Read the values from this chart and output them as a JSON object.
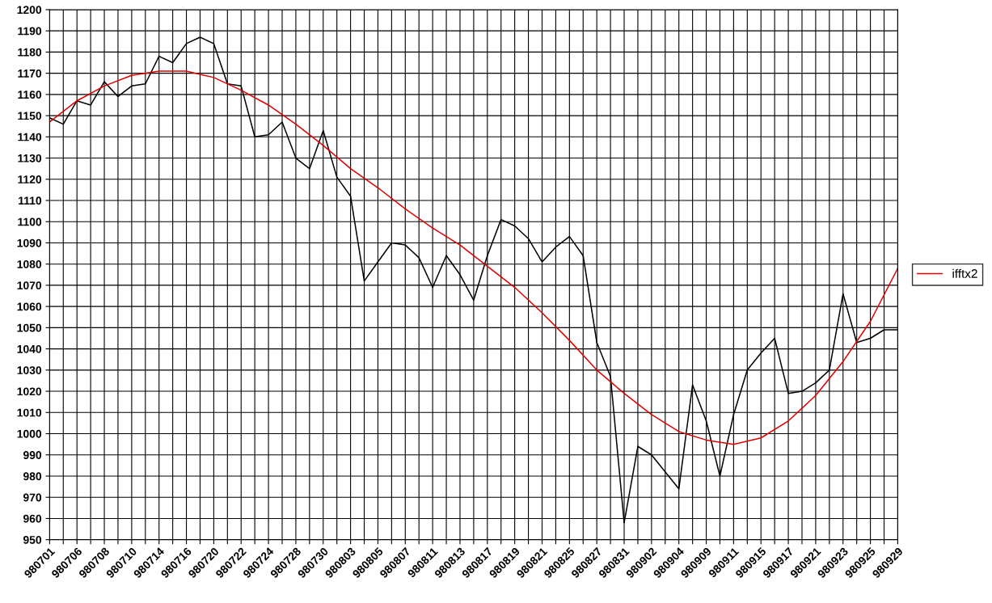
{
  "chart_data": {
    "type": "line",
    "categories": [
      "980701",
      null,
      "980706",
      null,
      "980708",
      null,
      "980710",
      null,
      "980714",
      null,
      "980716",
      null,
      "980720",
      null,
      "980722",
      null,
      "980724",
      null,
      "980728",
      null,
      "980730",
      null,
      "980803",
      null,
      "980805",
      null,
      "980807",
      null,
      "980811",
      null,
      "980813",
      null,
      "980817",
      null,
      "980819",
      null,
      "980821",
      null,
      "980825",
      null,
      "980827",
      null,
      "980831",
      null,
      "980902",
      null,
      "980904",
      null,
      "980909",
      null,
      "980911",
      null,
      "980915",
      null,
      "980917",
      null,
      "980921",
      null,
      "980923",
      null,
      "980925",
      null,
      "980929"
    ],
    "series": [
      {
        "color": "#000000",
        "values": [
          1149,
          1146,
          1157,
          1155,
          1166,
          1159,
          1164,
          1165,
          1178,
          1175,
          1184,
          1187,
          1184,
          1165,
          1164,
          1140,
          1141,
          1147,
          1130,
          1125,
          1143,
          1121,
          1112,
          1072,
          1081,
          1090,
          1089,
          1083,
          1069,
          1084,
          1075,
          1063,
          1084,
          1101,
          1098,
          1092,
          1081,
          1088,
          1093,
          1084,
          1043,
          1027,
          958,
          994,
          990,
          982,
          974,
          1023,
          1006,
          980,
          1009,
          1030,
          1038,
          1045,
          1019,
          1020,
          1024,
          1030,
          1066,
          1043,
          1045,
          1049,
          1049
        ]
      },
      {
        "name": "ifftx2",
        "color": "#e00000",
        "values": [
          1147,
          null,
          1157,
          null,
          1164,
          null,
          1169,
          null,
          1171,
          null,
          1171,
          null,
          1168,
          null,
          1162,
          null,
          1155,
          null,
          1146,
          null,
          1136,
          null,
          1125,
          null,
          1116,
          null,
          1106,
          null,
          1097,
          null,
          1089,
          null,
          1079,
          null,
          1069,
          null,
          1057,
          null,
          1044,
          null,
          1030,
          null,
          1019,
          null,
          1009,
          null,
          1001,
          null,
          997,
          null,
          995,
          null,
          998,
          null,
          1006,
          null,
          1018,
          null,
          1034,
          null,
          1053,
          null,
          1078
        ]
      }
    ],
    "ylim": [
      950,
      1200
    ],
    "yticks": [
      950,
      960,
      970,
      980,
      990,
      1000,
      1010,
      1020,
      1030,
      1040,
      1050,
      1060,
      1070,
      1080,
      1090,
      1100,
      1110,
      1120,
      1130,
      1140,
      1150,
      1160,
      1170,
      1180,
      1190,
      1200
    ],
    "grid": true,
    "legend": "right",
    "marker": "none",
    "line_style": "solid"
  }
}
